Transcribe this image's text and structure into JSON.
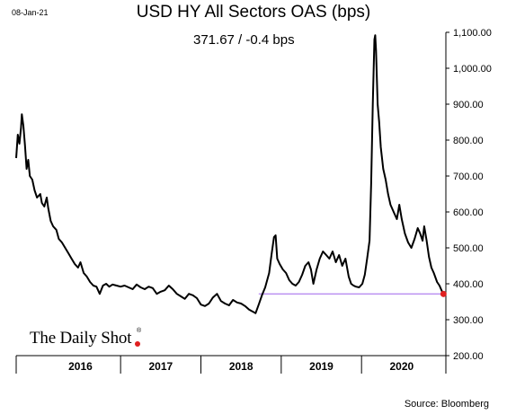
{
  "header": {
    "date": "08-Jan-21",
    "title": "USD HY All Sectors OAS (bps)",
    "stat": "371.67  /  -0.4 bps"
  },
  "footer": {
    "source": "Source: Bloomberg",
    "logo": "The Daily Shot",
    "logo_mark": "®"
  },
  "colors": {
    "line": "#000000",
    "reference_line": "#b98cf0",
    "last_point": "#e02020",
    "axis": "#000000"
  },
  "chart_data": {
    "type": "line",
    "title": "USD HY All Sectors OAS (bps)",
    "xlabel": "",
    "ylabel": "",
    "ylim": [
      200,
      1100
    ],
    "y_ticks": [
      "200.00",
      "300.00",
      "400.00",
      "500.00",
      "600.00",
      "700.00",
      "800.00",
      "900.00",
      "1,000.00",
      "1,100.00"
    ],
    "x_ticks": [
      "2016",
      "2017",
      "2018",
      "2019",
      "2020"
    ],
    "xlim": [
      2015.7,
      2021.05
    ],
    "reference_line": {
      "value": 371.67,
      "from_x": 2018.72
    },
    "last_point": {
      "x": 2021.02,
      "y": 371.67
    },
    "series": [
      {
        "points": [
          [
            2015.7,
            750
          ],
          [
            2015.72,
            815
          ],
          [
            2015.74,
            790
          ],
          [
            2015.76,
            835
          ],
          [
            2015.77,
            872
          ],
          [
            2015.79,
            840
          ],
          [
            2015.81,
            785
          ],
          [
            2015.83,
            720
          ],
          [
            2015.85,
            745
          ],
          [
            2015.87,
            700
          ],
          [
            2015.9,
            690
          ],
          [
            2015.93,
            660
          ],
          [
            2015.96,
            640
          ],
          [
            2016.0,
            650
          ],
          [
            2016.02,
            625
          ],
          [
            2016.05,
            615
          ],
          [
            2016.08,
            640
          ],
          [
            2016.1,
            610
          ],
          [
            2016.13,
            575
          ],
          [
            2016.16,
            560
          ],
          [
            2016.2,
            550
          ],
          [
            2016.23,
            525
          ],
          [
            2016.27,
            515
          ],
          [
            2016.31,
            500
          ],
          [
            2016.35,
            485
          ],
          [
            2016.39,
            470
          ],
          [
            2016.43,
            455
          ],
          [
            2016.47,
            445
          ],
          [
            2016.5,
            460
          ],
          [
            2016.54,
            430
          ],
          [
            2016.58,
            420
          ],
          [
            2016.62,
            405
          ],
          [
            2016.66,
            395
          ],
          [
            2016.7,
            392
          ],
          [
            2016.74,
            372
          ],
          [
            2016.78,
            395
          ],
          [
            2016.82,
            400
          ],
          [
            2016.86,
            392
          ],
          [
            2016.9,
            398
          ],
          [
            2016.95,
            395
          ],
          [
            2017.0,
            392
          ],
          [
            2017.05,
            395
          ],
          [
            2017.1,
            390
          ],
          [
            2017.15,
            385
          ],
          [
            2017.2,
            398
          ],
          [
            2017.25,
            390
          ],
          [
            2017.3,
            385
          ],
          [
            2017.35,
            392
          ],
          [
            2017.4,
            388
          ],
          [
            2017.45,
            372
          ],
          [
            2017.5,
            378
          ],
          [
            2017.55,
            382
          ],
          [
            2017.6,
            395
          ],
          [
            2017.65,
            385
          ],
          [
            2017.7,
            372
          ],
          [
            2017.75,
            365
          ],
          [
            2017.8,
            358
          ],
          [
            2017.85,
            372
          ],
          [
            2017.9,
            368
          ],
          [
            2017.95,
            360
          ],
          [
            2018.0,
            342
          ],
          [
            2018.05,
            338
          ],
          [
            2018.1,
            345
          ],
          [
            2018.15,
            362
          ],
          [
            2018.2,
            372
          ],
          [
            2018.25,
            352
          ],
          [
            2018.3,
            345
          ],
          [
            2018.35,
            340
          ],
          [
            2018.4,
            355
          ],
          [
            2018.45,
            348
          ],
          [
            2018.5,
            345
          ],
          [
            2018.55,
            338
          ],
          [
            2018.6,
            328
          ],
          [
            2018.65,
            322
          ],
          [
            2018.68,
            318
          ],
          [
            2018.72,
            342
          ],
          [
            2018.76,
            368
          ],
          [
            2018.8,
            390
          ],
          [
            2018.85,
            430
          ],
          [
            2018.88,
            482
          ],
          [
            2018.91,
            530
          ],
          [
            2018.93,
            535
          ],
          [
            2018.95,
            470
          ],
          [
            2018.98,
            455
          ],
          [
            2019.02,
            440
          ],
          [
            2019.06,
            430
          ],
          [
            2019.1,
            410
          ],
          [
            2019.14,
            400
          ],
          [
            2019.18,
            395
          ],
          [
            2019.22,
            405
          ],
          [
            2019.26,
            425
          ],
          [
            2019.3,
            450
          ],
          [
            2019.34,
            460
          ],
          [
            2019.37,
            440
          ],
          [
            2019.4,
            400
          ],
          [
            2019.44,
            440
          ],
          [
            2019.48,
            470
          ],
          [
            2019.52,
            490
          ],
          [
            2019.56,
            480
          ],
          [
            2019.6,
            470
          ],
          [
            2019.64,
            490
          ],
          [
            2019.68,
            460
          ],
          [
            2019.72,
            480
          ],
          [
            2019.76,
            450
          ],
          [
            2019.8,
            470
          ],
          [
            2019.84,
            420
          ],
          [
            2019.87,
            400
          ],
          [
            2019.9,
            395
          ],
          [
            2019.93,
            392
          ],
          [
            2019.97,
            390
          ],
          [
            2020.01,
            400
          ],
          [
            2020.04,
            425
          ],
          [
            2020.07,
            470
          ],
          [
            2020.1,
            520
          ],
          [
            2020.12,
            680
          ],
          [
            2020.14,
            900
          ],
          [
            2020.16,
            1080
          ],
          [
            2020.17,
            1092
          ],
          [
            2020.18,
            1050
          ],
          [
            2020.2,
            900
          ],
          [
            2020.22,
            850
          ],
          [
            2020.24,
            780
          ],
          [
            2020.27,
            720
          ],
          [
            2020.3,
            690
          ],
          [
            2020.33,
            650
          ],
          [
            2020.36,
            620
          ],
          [
            2020.4,
            600
          ],
          [
            2020.44,
            580
          ],
          [
            2020.47,
            620
          ],
          [
            2020.5,
            580
          ],
          [
            2020.54,
            540
          ],
          [
            2020.58,
            515
          ],
          [
            2020.62,
            500
          ],
          [
            2020.66,
            525
          ],
          [
            2020.7,
            555
          ],
          [
            2020.73,
            540
          ],
          [
            2020.76,
            520
          ],
          [
            2020.78,
            560
          ],
          [
            2020.81,
            520
          ],
          [
            2020.84,
            475
          ],
          [
            2020.87,
            445
          ],
          [
            2020.9,
            430
          ],
          [
            2020.94,
            405
          ],
          [
            2020.97,
            395
          ],
          [
            2021.0,
            380
          ],
          [
            2021.02,
            371.67
          ]
        ]
      }
    ]
  }
}
